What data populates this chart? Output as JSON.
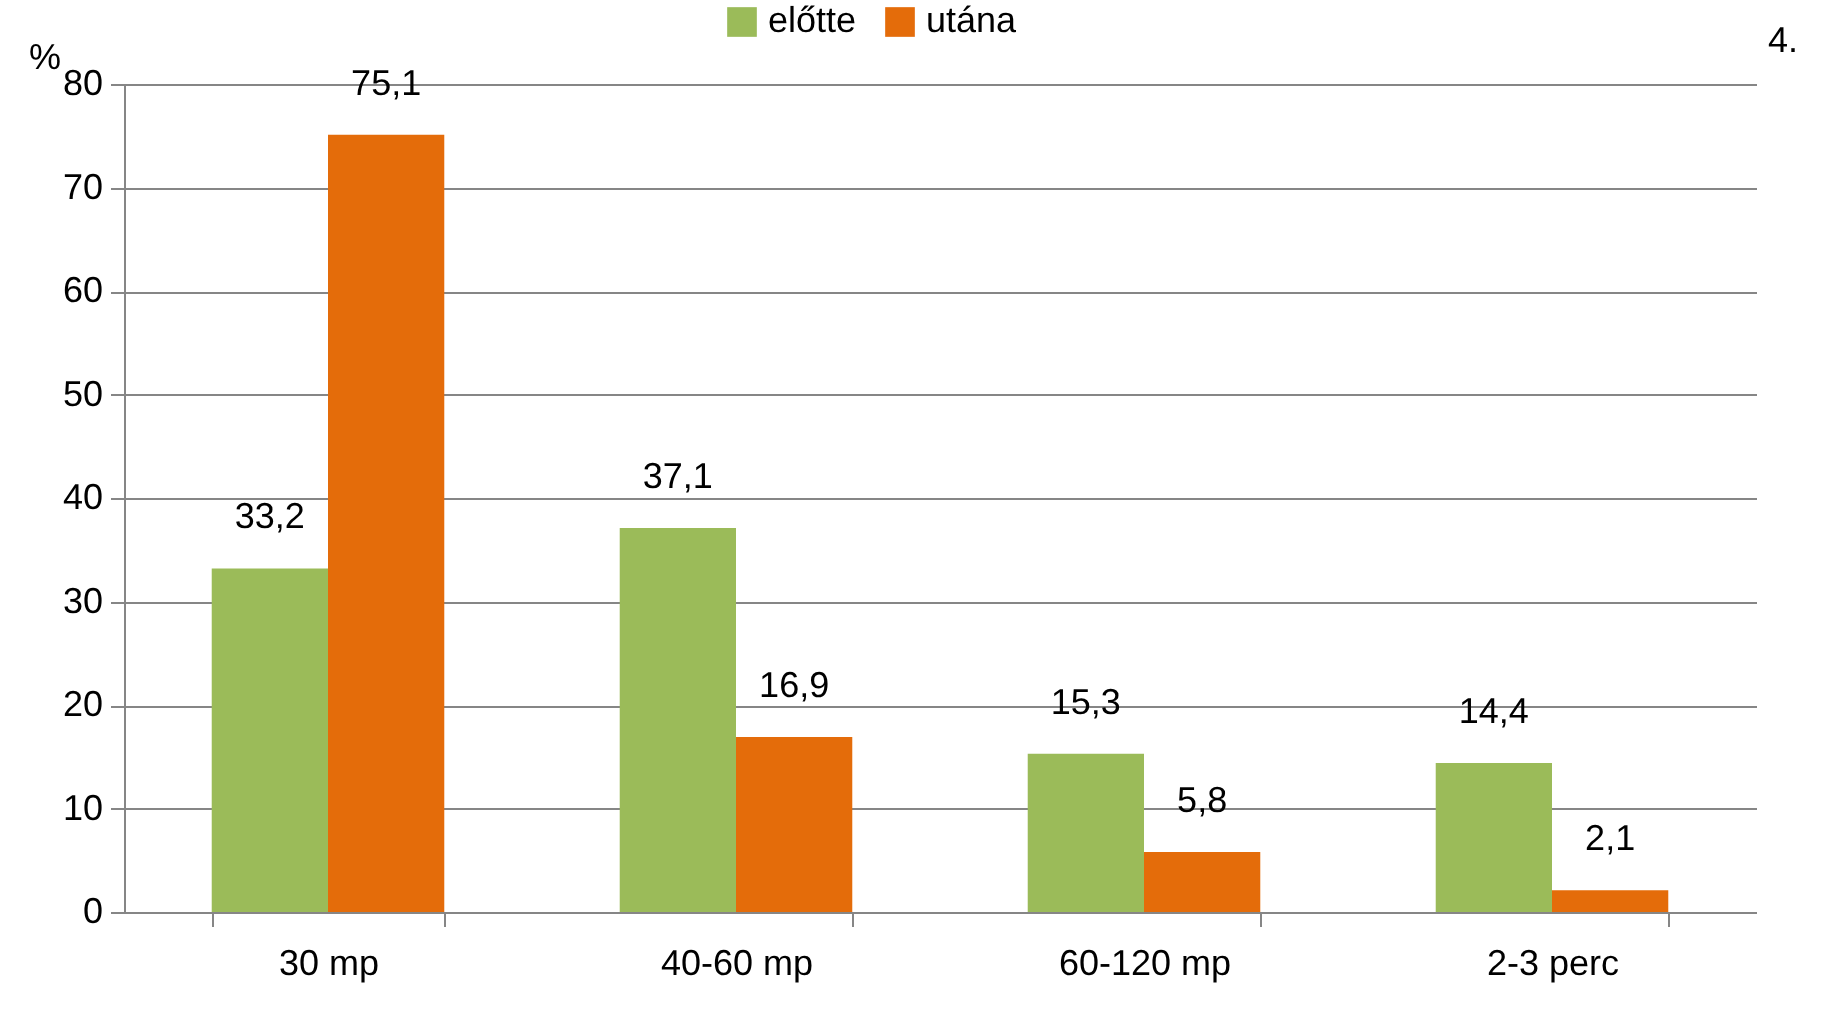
{
  "chart_data": {
    "type": "bar",
    "ylabel": "%",
    "categories": [
      "30 mp",
      "40-60 mp",
      "60-120 mp",
      "2-3 perc"
    ],
    "series": [
      {
        "name": "előtte",
        "color": "#9bbb59",
        "values": [
          33.2,
          37.1,
          15.3,
          14.4
        ],
        "value_labels": [
          "33,2",
          "37,1",
          "15,3",
          "14,4"
        ]
      },
      {
        "name": "utána",
        "color": "#e46c0a",
        "values": [
          75.1,
          16.9,
          5.8,
          2.1
        ],
        "value_labels": [
          "75,1",
          "16,9",
          "5,8",
          "2,1"
        ]
      }
    ],
    "ylim": [
      0,
      80
    ],
    "yticks": [
      0,
      10,
      20,
      30,
      40,
      50,
      60,
      70,
      80
    ],
    "grid": "y",
    "legend": "top",
    "annotations": [
      "4."
    ]
  }
}
